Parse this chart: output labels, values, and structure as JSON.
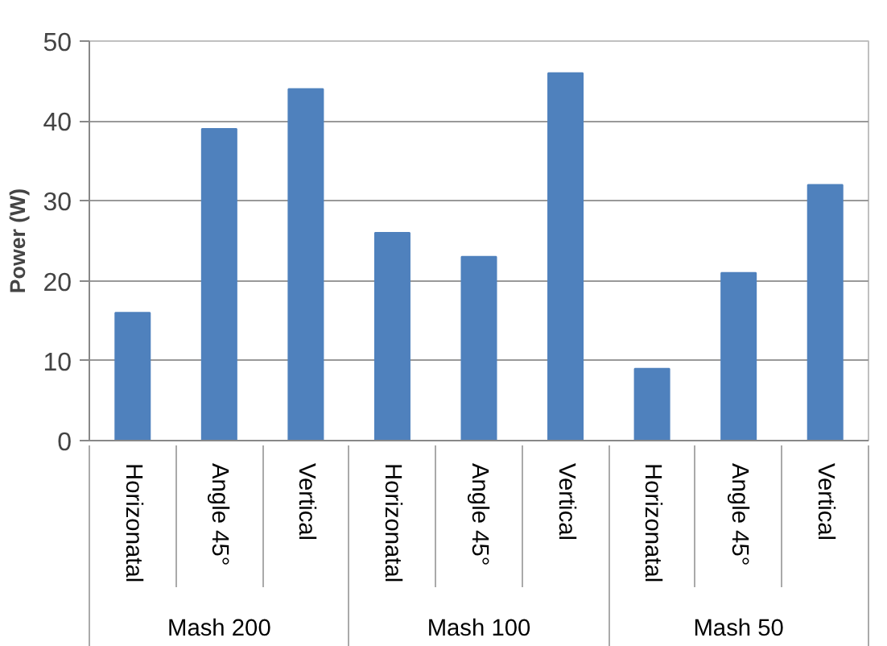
{
  "chart_data": {
    "type": "bar",
    "ylabel": "Power (W)",
    "categories": [
      "Horizonatal",
      "Angle 45°",
      "Vertical",
      "Horizonatal",
      "Angle 45°",
      "Vertical",
      "Horizonatal",
      "Angle 45°",
      "Vertical"
    ],
    "annotations": [
      "Mash 200",
      "Mash 100",
      "Mash 50"
    ],
    "values": [
      16,
      39,
      44,
      26,
      23,
      46,
      9,
      21,
      32
    ],
    "color": "#4f81bd",
    "ylim": [
      0,
      50
    ],
    "yticks": [
      0,
      10,
      20,
      30,
      40,
      50
    ],
    "grid": "y"
  }
}
